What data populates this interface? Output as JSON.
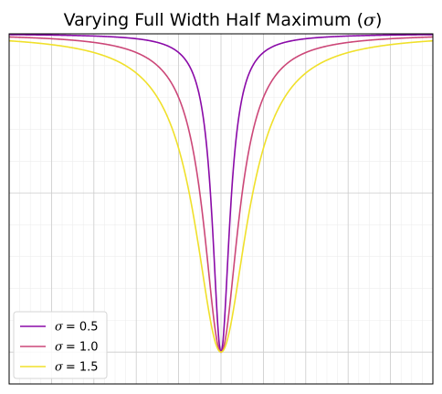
{
  "chart_data": {
    "type": "line",
    "title": "Varying Full Width Half Maximum (σ)",
    "title_parts": {
      "prefix": "Varying Full Width Half Maximum (",
      "symbol": "σ",
      "suffix": ")"
    },
    "xlabel": "",
    "ylabel": "",
    "xlim": [
      -5,
      5
    ],
    "ylim": [
      -0.1,
      1.0
    ],
    "grid": true,
    "minor_grid": true,
    "ticks_labeled": false,
    "legend_position": "lower-left",
    "function": "inverted Lorentzian: y = 1 - (s^2/4) / (x^2 + s^2/4)",
    "series": [
      {
        "name": "σ = 0.5",
        "legend_symbol": "σ",
        "legend_value": "= 0.5",
        "sigma": 0.5,
        "color": "#8a0aa8",
        "x": [
          -5,
          -4,
          -3,
          -2,
          -1.5,
          -1,
          -0.75,
          -0.5,
          -0.25,
          0,
          0.25,
          0.5,
          0.75,
          1,
          1.5,
          2,
          3,
          4,
          5
        ],
        "y": [
          0.9975,
          0.9961,
          0.9931,
          0.9846,
          0.973,
          0.9412,
          0.9,
          0.8,
          0.5,
          0.0,
          0.5,
          0.8,
          0.9,
          0.9412,
          0.973,
          0.9846,
          0.9931,
          0.9961,
          0.9975
        ]
      },
      {
        "name": "σ = 1.0",
        "legend_symbol": "σ",
        "legend_value": "= 1.0",
        "sigma": 1.0,
        "color": "#cc4778",
        "x": [
          -5,
          -4,
          -3,
          -2,
          -1.5,
          -1,
          -0.75,
          -0.5,
          -0.25,
          0,
          0.25,
          0.5,
          0.75,
          1,
          1.5,
          2,
          3,
          4,
          5
        ],
        "y": [
          0.9901,
          0.9846,
          0.973,
          0.9412,
          0.9,
          0.8,
          0.6923,
          0.5,
          0.2,
          0.0,
          0.2,
          0.5,
          0.6923,
          0.8,
          0.9,
          0.9412,
          0.973,
          0.9846,
          0.9901
        ]
      },
      {
        "name": "σ = 1.5",
        "legend_symbol": "σ",
        "legend_value": "= 1.5",
        "sigma": 1.5,
        "color": "#f0e02a",
        "x": [
          -5,
          -4,
          -3,
          -2,
          -1.5,
          -1,
          -0.75,
          -0.5,
          -0.25,
          0,
          0.25,
          0.5,
          0.75,
          1,
          1.5,
          2,
          3,
          4,
          5
        ],
        "y": [
          0.978,
          0.966,
          0.9412,
          0.8767,
          0.8,
          0.64,
          0.5,
          0.3077,
          0.1,
          0.0,
          0.1,
          0.3077,
          0.5,
          0.64,
          0.8,
          0.8767,
          0.9412,
          0.966,
          0.978
        ]
      }
    ]
  }
}
